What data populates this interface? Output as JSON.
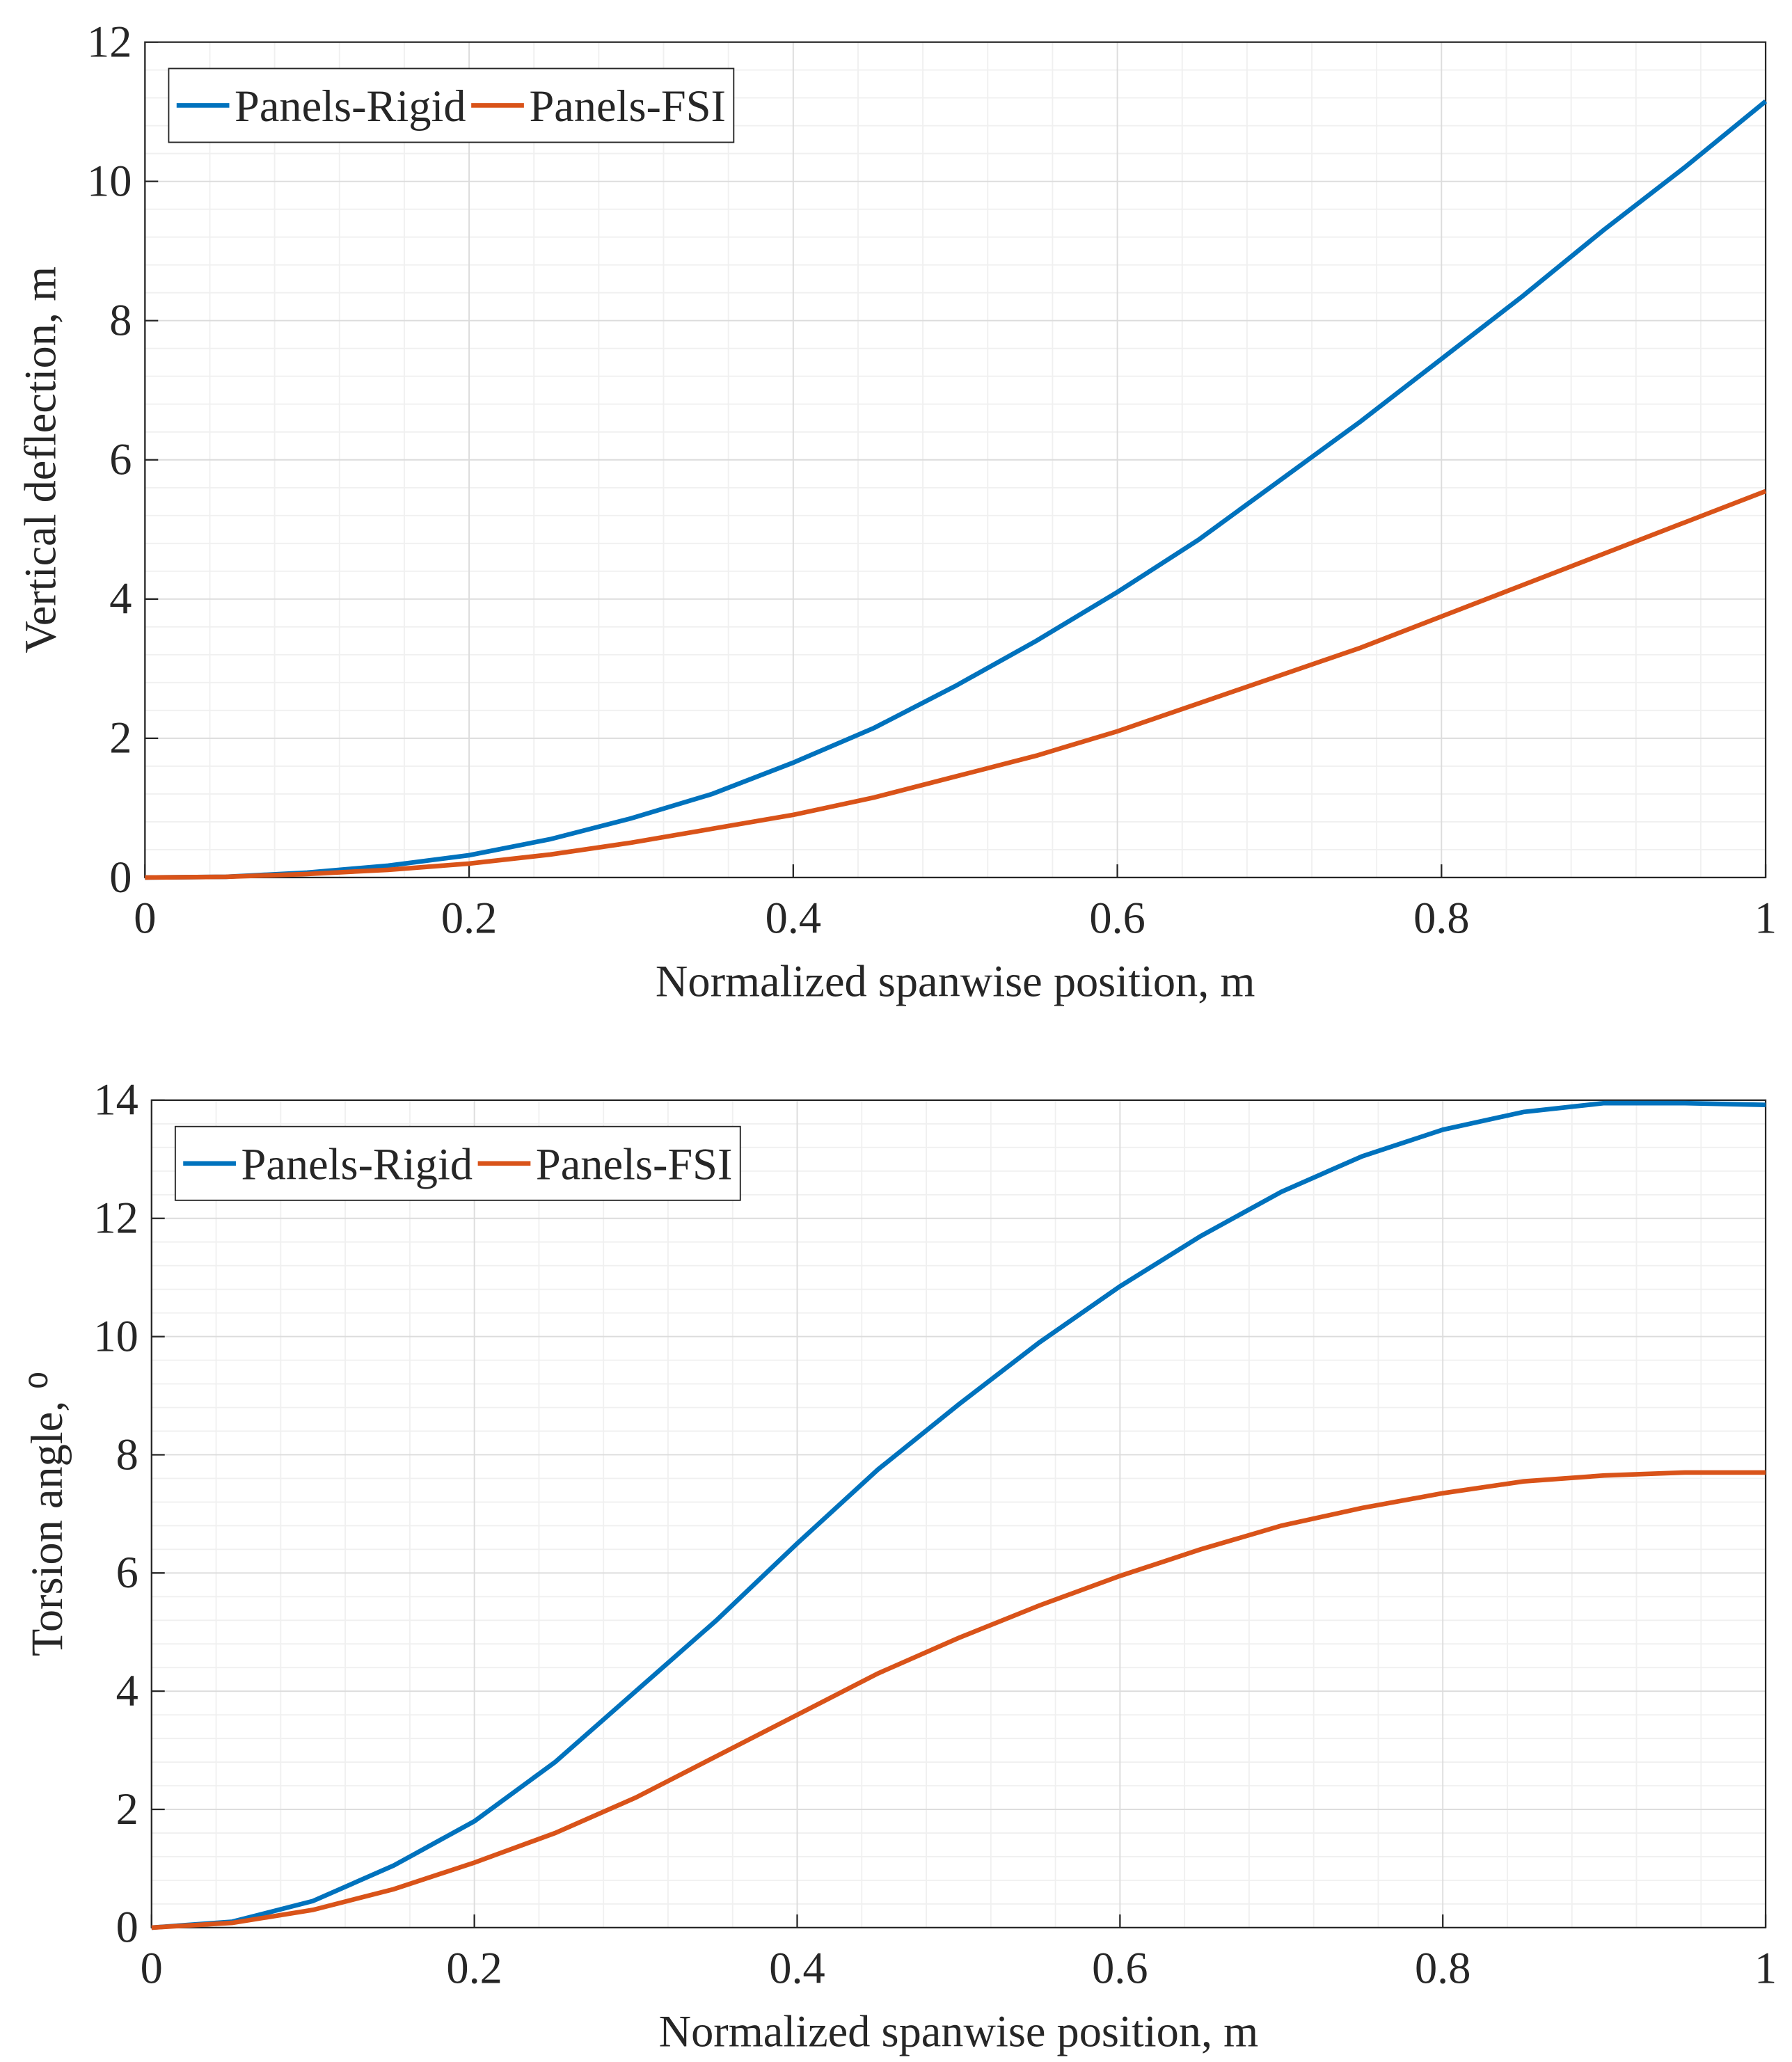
{
  "chart_data": [
    {
      "type": "line",
      "xlabel": "Normalized spanwise position, m",
      "ylabel": "Vertical deflection, m",
      "x": [
        0,
        0.05,
        0.1,
        0.15,
        0.2,
        0.25,
        0.3,
        0.35,
        0.4,
        0.45,
        0.5,
        0.55,
        0.6,
        0.65,
        0.7,
        0.75,
        0.8,
        0.85,
        0.9,
        0.95,
        1
      ],
      "series": [
        {
          "name": "Panels-Rigid",
          "color": "#0072bd",
          "values": [
            0,
            0.01,
            0.07,
            0.17,
            0.32,
            0.55,
            0.85,
            1.2,
            1.65,
            2.15,
            2.75,
            3.4,
            4.1,
            4.85,
            5.7,
            6.55,
            7.45,
            8.35,
            9.3,
            10.2,
            11.15
          ]
        },
        {
          "name": "Panels-FSI",
          "color": "#d95319",
          "values": [
            0,
            0.01,
            0.05,
            0.11,
            0.2,
            0.33,
            0.5,
            0.7,
            0.9,
            1.15,
            1.45,
            1.75,
            2.1,
            2.5,
            2.9,
            3.3,
            3.75,
            4.2,
            4.65,
            5.1,
            5.55
          ]
        }
      ],
      "xlim": [
        0,
        1
      ],
      "xticks": [
        0,
        0.2,
        0.4,
        0.6,
        0.8,
        1
      ],
      "ylim": [
        0,
        12
      ],
      "yticks": [
        0,
        2,
        4,
        6,
        8,
        10,
        12
      ],
      "grid": true,
      "minor_grid": true,
      "legend": "upper left"
    },
    {
      "type": "line",
      "xlabel": "Normalized spanwise position, m",
      "ylabel": "Torsion angle, ⁰",
      "x": [
        0,
        0.05,
        0.1,
        0.15,
        0.2,
        0.25,
        0.3,
        0.35,
        0.4,
        0.45,
        0.5,
        0.55,
        0.6,
        0.65,
        0.7,
        0.75,
        0.8,
        0.85,
        0.9,
        0.95,
        1
      ],
      "series": [
        {
          "name": "Panels-Rigid",
          "color": "#0072bd",
          "values": [
            0,
            0.1,
            0.45,
            1.05,
            1.8,
            2.8,
            4.0,
            5.2,
            6.5,
            7.75,
            8.85,
            9.9,
            10.85,
            11.7,
            12.45,
            13.05,
            13.5,
            13.8,
            13.95,
            13.95,
            13.92
          ]
        },
        {
          "name": "Panels-FSI",
          "color": "#d95319",
          "values": [
            0,
            0.08,
            0.3,
            0.65,
            1.1,
            1.6,
            2.2,
            2.9,
            3.6,
            4.3,
            4.9,
            5.45,
            5.95,
            6.4,
            6.8,
            7.1,
            7.35,
            7.55,
            7.65,
            7.7,
            7.7
          ]
        }
      ],
      "xlim": [
        0,
        1
      ],
      "xticks": [
        0,
        0.2,
        0.4,
        0.6,
        0.8,
        1
      ],
      "ylim": [
        0,
        14
      ],
      "yticks": [
        0,
        2,
        4,
        6,
        8,
        10,
        12,
        14
      ],
      "grid": true,
      "minor_grid": true,
      "legend": "upper left"
    }
  ]
}
